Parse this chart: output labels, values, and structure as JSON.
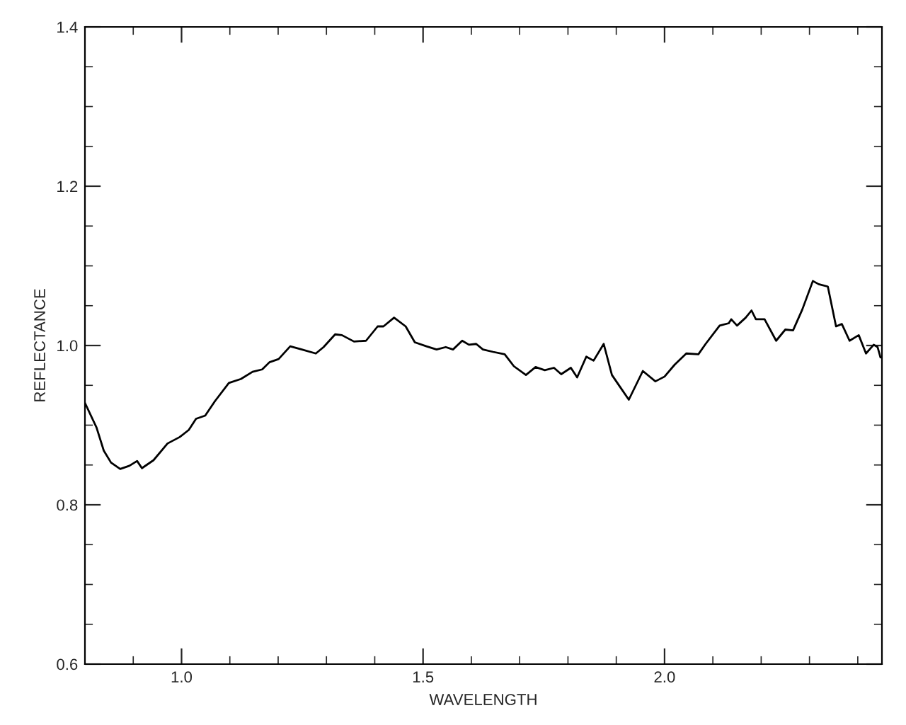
{
  "chart_data": {
    "type": "line",
    "xlabel": "WAVELENGTH",
    "ylabel": "REFLECTANCE",
    "xlim": [
      0.8,
      2.45
    ],
    "ylim": [
      0.6,
      1.4
    ],
    "xticks": [
      {
        "value": 1.0,
        "label": "1.0"
      },
      {
        "value": 1.5,
        "label": "1.5"
      },
      {
        "value": 2.0,
        "label": "2.0"
      }
    ],
    "yticks": [
      {
        "value": 0.6,
        "label": "0.6"
      },
      {
        "value": 0.8,
        "label": "0.8"
      },
      {
        "value": 1.0,
        "label": "1.0"
      },
      {
        "value": 1.2,
        "label": "1.2"
      },
      {
        "value": 1.4,
        "label": "1.4"
      }
    ],
    "grid": false,
    "marker": "none",
    "line_style": "solid",
    "series": [
      {
        "color": "#000000",
        "x": [
          0.8,
          0.824,
          0.839,
          0.854,
          0.873,
          0.892,
          0.908,
          0.918,
          0.942,
          0.971,
          0.996,
          1.015,
          1.03,
          1.049,
          1.069,
          1.098,
          1.123,
          1.147,
          1.167,
          1.182,
          1.201,
          1.225,
          1.249,
          1.278,
          1.294,
          1.318,
          1.332,
          1.357,
          1.382,
          1.406,
          1.418,
          1.44,
          1.464,
          1.483,
          1.507,
          1.528,
          1.547,
          1.562,
          1.581,
          1.595,
          1.61,
          1.624,
          1.645,
          1.669,
          1.688,
          1.713,
          1.733,
          1.752,
          1.771,
          1.786,
          1.806,
          1.819,
          1.838,
          1.853,
          1.874,
          1.891,
          1.909,
          1.926,
          1.955,
          1.981,
          2.0,
          2.021,
          2.045,
          2.07,
          2.085,
          2.114,
          2.133,
          2.138,
          2.15,
          2.168,
          2.18,
          2.189,
          2.207,
          2.231,
          2.25,
          2.266,
          2.285,
          2.307,
          2.319,
          2.338,
          2.355,
          2.367,
          2.383,
          2.402,
          2.417,
          2.433,
          2.441,
          2.447
        ],
        "values": [
          0.928,
          0.897,
          0.868,
          0.853,
          0.845,
          0.849,
          0.855,
          0.846,
          0.856,
          0.877,
          0.885,
          0.894,
          0.908,
          0.912,
          0.93,
          0.953,
          0.958,
          0.967,
          0.97,
          0.979,
          0.983,
          0.999,
          0.995,
          0.99,
          0.998,
          1.014,
          1.013,
          1.005,
          1.006,
          1.024,
          1.024,
          1.035,
          1.024,
          1.004,
          0.999,
          0.995,
          0.998,
          0.995,
          1.006,
          1.001,
          1.002,
          0.995,
          0.992,
          0.989,
          0.974,
          0.963,
          0.973,
          0.969,
          0.972,
          0.964,
          0.972,
          0.96,
          0.986,
          0.981,
          1.002,
          0.963,
          0.947,
          0.932,
          0.968,
          0.955,
          0.961,
          0.976,
          0.99,
          0.989,
          1.002,
          1.025,
          1.028,
          1.033,
          1.025,
          1.035,
          1.044,
          1.033,
          1.033,
          1.006,
          1.02,
          1.019,
          1.045,
          1.081,
          1.077,
          1.074,
          1.024,
          1.027,
          1.006,
          1.013,
          0.99,
          1.001,
          0.998,
          0.985
        ]
      }
    ]
  }
}
